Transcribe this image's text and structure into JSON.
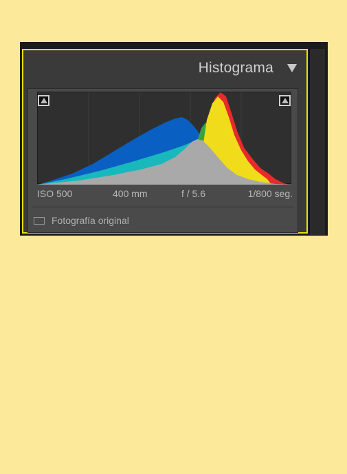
{
  "panel": {
    "title": "Histograma",
    "collapse_icon": "triangle-down-icon"
  },
  "histogram": {
    "shadow_clip_icon": "shadow-clipping-icon",
    "highlight_clip_icon": "highlight-clipping-icon",
    "channels": [
      "blue",
      "cyan",
      "green",
      "yellow",
      "red",
      "gray"
    ],
    "colors": {
      "blue": "#0a5fc2",
      "cyan": "#18b8bc",
      "green": "#3aa23a",
      "yellow": "#f0dc1a",
      "red": "#e82a2a",
      "gray": "#a9a9a9"
    }
  },
  "info": {
    "iso": "ISO 500",
    "focal": "400 mm",
    "aperture": "f / 5.6",
    "shutter": "1/800 seg."
  },
  "original": {
    "label": "Fotografía original",
    "checked": false
  },
  "colors": {
    "background": "#fde99a",
    "panel": "#3a3a3a",
    "highlight_border": "#e8e000"
  }
}
